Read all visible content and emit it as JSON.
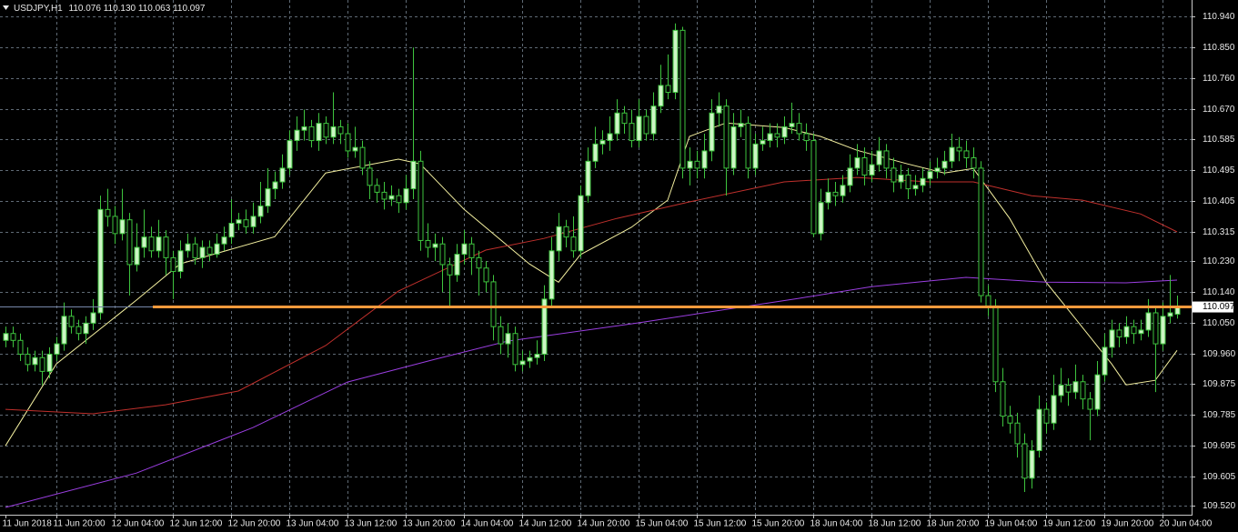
{
  "chart_data": {
    "type": "candlestick",
    "header": {
      "symbol": "USDJPY,H1",
      "values": [
        "110.076",
        "110.130",
        "110.063",
        "110.097"
      ]
    },
    "open": [
      110.0,
      110.02,
      110.0,
      109.96,
      109.93,
      109.95,
      109.91,
      109.96,
      109.99,
      110.07,
      110.04,
      110.02,
      110.05,
      110.08,
      110.38,
      110.36,
      110.31,
      110.35,
      110.22,
      110.27,
      110.3,
      110.26,
      110.3,
      110.24,
      110.2,
      110.26,
      110.28,
      110.24,
      110.27,
      110.25,
      110.28,
      110.3,
      110.34,
      110.35,
      110.33,
      110.36,
      110.39,
      110.44,
      110.46,
      110.5,
      110.58,
      110.61,
      110.62,
      110.58,
      110.63,
      110.59,
      110.62,
      110.6,
      110.55,
      110.56,
      110.5,
      110.45,
      110.43,
      110.41,
      110.42,
      110.4,
      110.44,
      110.52,
      110.29,
      110.27,
      110.28,
      110.22,
      110.19,
      110.25,
      110.28,
      110.24,
      110.21,
      110.17,
      110.04,
      109.99,
      110.02,
      109.93,
      109.94,
      109.95,
      109.96,
      110.12,
      110.26,
      110.33,
      110.3,
      110.26,
      110.42,
      110.52,
      110.57,
      110.58,
      110.6,
      110.66,
      110.63,
      110.58,
      110.65,
      110.6,
      110.68,
      110.74,
      110.72,
      110.9,
      110.5,
      110.52,
      110.5,
      110.55,
      110.66,
      110.68,
      110.5,
      110.62,
      110.63,
      110.5,
      110.57,
      110.58,
      110.6,
      110.59,
      110.62,
      110.63,
      110.6,
      110.58,
      110.31,
      110.4,
      110.43,
      110.42,
      110.45,
      110.5,
      110.53,
      110.48,
      110.51,
      110.55,
      110.5,
      110.46,
      110.48,
      110.44,
      110.45,
      110.47,
      110.49,
      110.5,
      110.52,
      110.56,
      110.55,
      110.53,
      110.5,
      110.13,
      110.1,
      109.88,
      109.78,
      109.76,
      109.7,
      109.6,
      109.68,
      109.8,
      109.76,
      109.84,
      109.87,
      109.85,
      109.88,
      109.83,
      109.8,
      109.9,
      109.98,
      110.03,
      110.01,
      110.04,
      110.02,
      110.03,
      110.08,
      109.99,
      110.07,
      110.076
    ],
    "high": [
      110.04,
      110.04,
      110.02,
      109.98,
      109.97,
      109.97,
      109.98,
      110.01,
      110.11,
      110.09,
      110.06,
      110.07,
      110.12,
      110.42,
      110.44,
      110.39,
      110.44,
      110.37,
      110.34,
      110.38,
      110.33,
      110.35,
      110.32,
      110.26,
      110.29,
      110.31,
      110.3,
      110.29,
      110.29,
      110.31,
      110.33,
      110.41,
      110.37,
      110.38,
      110.4,
      110.46,
      110.5,
      110.49,
      110.54,
      110.61,
      110.65,
      110.67,
      110.64,
      110.66,
      110.65,
      110.72,
      110.64,
      110.63,
      110.62,
      110.58,
      110.52,
      110.47,
      110.46,
      110.45,
      110.44,
      110.48,
      110.85,
      110.55,
      110.34,
      110.31,
      110.3,
      110.24,
      110.28,
      110.32,
      110.3,
      110.26,
      110.23,
      110.19,
      110.07,
      110.05,
      110.04,
      109.97,
      109.97,
      110.0,
      110.16,
      110.3,
      110.37,
      110.35,
      110.36,
      110.45,
      110.56,
      110.62,
      110.61,
      110.65,
      110.7,
      110.68,
      110.67,
      110.7,
      110.67,
      110.72,
      110.8,
      110.83,
      110.92,
      110.91,
      110.56,
      110.55,
      110.6,
      110.7,
      110.72,
      110.7,
      110.66,
      110.67,
      110.65,
      110.6,
      110.62,
      110.63,
      110.63,
      110.65,
      110.69,
      110.66,
      110.63,
      110.6,
      110.44,
      110.47,
      110.46,
      110.48,
      110.54,
      110.57,
      110.56,
      110.55,
      110.59,
      110.57,
      110.53,
      110.51,
      110.5,
      110.48,
      110.5,
      110.52,
      110.53,
      110.55,
      110.6,
      110.59,
      110.58,
      110.56,
      110.52,
      110.16,
      110.12,
      109.92,
      109.81,
      109.79,
      109.73,
      109.71,
      109.84,
      109.82,
      109.9,
      109.92,
      109.89,
      109.93,
      109.9,
      109.85,
      109.94,
      110.02,
      110.06,
      110.05,
      110.07,
      110.06,
      110.06,
      110.12,
      110.1,
      110.11,
      110.19,
      110.13
    ],
    "low": [
      109.98,
      109.98,
      109.94,
      109.91,
      109.91,
      109.87,
      109.89,
      109.94,
      109.97,
      110.02,
      110.0,
      109.99,
      110.03,
      110.06,
      110.33,
      110.28,
      110.29,
      110.13,
      110.2,
      110.24,
      110.24,
      110.24,
      110.19,
      110.12,
      110.18,
      110.24,
      110.22,
      110.21,
      110.23,
      110.24,
      110.26,
      110.28,
      110.32,
      110.31,
      110.31,
      110.34,
      110.37,
      110.41,
      110.44,
      110.48,
      110.55,
      110.58,
      110.56,
      110.55,
      110.57,
      110.57,
      110.57,
      110.53,
      110.53,
      110.48,
      110.41,
      110.4,
      110.38,
      110.39,
      110.37,
      110.38,
      110.41,
      110.26,
      110.24,
      110.23,
      110.14,
      110.1,
      110.17,
      110.22,
      110.19,
      110.13,
      110.14,
      110.0,
      109.96,
      109.95,
      109.91,
      109.91,
      109.92,
      109.93,
      109.94,
      110.1,
      110.23,
      110.27,
      110.24,
      110.24,
      110.4,
      110.5,
      110.54,
      110.55,
      110.58,
      110.6,
      110.56,
      110.56,
      110.58,
      110.58,
      110.66,
      110.7,
      110.7,
      110.47,
      110.45,
      110.47,
      110.47,
      110.52,
      110.62,
      110.42,
      110.48,
      110.59,
      110.47,
      110.48,
      110.55,
      110.56,
      110.56,
      110.57,
      110.6,
      110.58,
      110.55,
      110.3,
      110.29,
      110.38,
      110.39,
      110.4,
      110.43,
      110.48,
      110.45,
      110.46,
      110.49,
      110.47,
      110.43,
      110.44,
      110.41,
      110.42,
      110.43,
      110.45,
      110.47,
      110.48,
      110.5,
      110.52,
      110.5,
      110.47,
      110.11,
      110.07,
      109.85,
      109.75,
      109.73,
      109.66,
      109.56,
      109.57,
      109.66,
      109.73,
      109.74,
      109.82,
      109.81,
      109.83,
      109.8,
      109.71,
      109.78,
      109.88,
      109.95,
      109.98,
      109.99,
      109.99,
      110.0,
      110.01,
      109.85,
      109.97,
      110.05,
      110.063
    ],
    "close": [
      110.02,
      110.0,
      109.96,
      109.93,
      109.95,
      109.91,
      109.96,
      109.99,
      110.07,
      110.04,
      110.02,
      110.05,
      110.08,
      110.38,
      110.36,
      110.31,
      110.35,
      110.22,
      110.27,
      110.3,
      110.26,
      110.3,
      110.24,
      110.2,
      110.26,
      110.28,
      110.24,
      110.27,
      110.25,
      110.28,
      110.3,
      110.34,
      110.35,
      110.33,
      110.36,
      110.39,
      110.44,
      110.46,
      110.5,
      110.58,
      110.61,
      110.62,
      110.58,
      110.63,
      110.59,
      110.62,
      110.6,
      110.55,
      110.56,
      110.5,
      110.45,
      110.43,
      110.41,
      110.42,
      110.4,
      110.44,
      110.52,
      110.29,
      110.27,
      110.28,
      110.22,
      110.19,
      110.25,
      110.28,
      110.24,
      110.21,
      110.17,
      110.04,
      109.99,
      110.02,
      109.93,
      109.94,
      109.95,
      109.96,
      110.12,
      110.26,
      110.33,
      110.3,
      110.26,
      110.42,
      110.52,
      110.57,
      110.58,
      110.6,
      110.66,
      110.63,
      110.58,
      110.65,
      110.6,
      110.68,
      110.74,
      110.72,
      110.9,
      110.5,
      110.52,
      110.5,
      110.55,
      110.66,
      110.68,
      110.5,
      110.62,
      110.63,
      110.5,
      110.57,
      110.58,
      110.6,
      110.59,
      110.62,
      110.63,
      110.6,
      110.58,
      110.31,
      110.4,
      110.43,
      110.42,
      110.45,
      110.5,
      110.53,
      110.48,
      110.51,
      110.55,
      110.5,
      110.46,
      110.48,
      110.44,
      110.45,
      110.47,
      110.49,
      110.5,
      110.52,
      110.56,
      110.55,
      110.53,
      110.5,
      110.13,
      110.1,
      109.88,
      109.78,
      109.76,
      109.7,
      109.6,
      109.68,
      109.8,
      109.76,
      109.84,
      109.87,
      109.85,
      109.88,
      109.83,
      109.8,
      109.9,
      109.98,
      110.03,
      110.01,
      110.04,
      110.02,
      110.03,
      110.08,
      109.99,
      110.07,
      110.08,
      110.097
    ],
    "up_color": "#ccf5c4",
    "down_color": "#000000",
    "wick_color": "#3ec43e",
    "lines": [
      {
        "color": "#f4f0a0",
        "x": [
          0,
          7,
          18,
          24,
          37,
          44,
          54,
          57,
          63,
          72,
          76,
          79,
          86,
          91,
          94,
          99,
          107,
          112,
          117,
          124,
          129,
          133,
          138,
          143,
          147,
          152,
          154,
          158,
          161
        ],
        "values": [
          109.694,
          109.932,
          110.117,
          110.222,
          110.301,
          110.486,
          110.526,
          110.512,
          110.381,
          110.222,
          110.169,
          110.249,
          110.328,
          110.407,
          110.592,
          110.631,
          110.618,
          110.592,
          110.552,
          110.512,
          110.486,
          110.499,
          110.354,
          110.169,
          110.064,
          109.932,
          109.871,
          109.884,
          109.971
        ]
      },
      {
        "color": "#c0302c",
        "x": [
          0,
          12,
          22,
          32,
          44,
          54,
          66,
          74,
          84,
          94,
          107,
          117,
          127,
          133,
          141,
          148,
          156,
          161
        ],
        "values": [
          109.8,
          109.787,
          109.813,
          109.853,
          109.985,
          110.143,
          110.262,
          110.296,
          110.354,
          110.402,
          110.46,
          110.473,
          110.46,
          110.46,
          110.42,
          110.407,
          110.367,
          110.315
        ]
      },
      {
        "color": "#9a3ee0",
        "x": [
          0,
          18,
          34,
          47,
          59,
          69,
          87,
          99,
          109,
          119,
          132,
          143,
          154,
          161
        ],
        "values": [
          109.515,
          109.615,
          109.747,
          109.879,
          109.945,
          109.998,
          110.051,
          110.09,
          110.122,
          110.156,
          110.183,
          110.169,
          110.167,
          110.175
        ]
      }
    ],
    "price_line": {
      "value": 110.097,
      "label": "110.097",
      "color": "#ff9a3c"
    },
    "xlim": [
      -0.75,
      163
    ],
    "ylim": [
      109.494,
      110.988
    ],
    "xticks": [
      {
        "value": 0,
        "label": "11 Jun 2018"
      },
      {
        "value": 7,
        "label": "11 Jun 20:00"
      },
      {
        "value": 15,
        "label": "12 Jun 04:00"
      },
      {
        "value": 23,
        "label": "12 Jun 12:00"
      },
      {
        "value": 31,
        "label": "12 Jun 20:00"
      },
      {
        "value": 39,
        "label": "13 Jun 04:00"
      },
      {
        "value": 47,
        "label": "13 Jun 12:00"
      },
      {
        "value": 55,
        "label": "13 Jun 20:00"
      },
      {
        "value": 63,
        "label": "14 Jun 04:00"
      },
      {
        "value": 71,
        "label": "14 Jun 12:00"
      },
      {
        "value": 79,
        "label": "14 Jun 20:00"
      },
      {
        "value": 87,
        "label": "15 Jun 04:00"
      },
      {
        "value": 95,
        "label": "15 Jun 12:00"
      },
      {
        "value": 103,
        "label": "15 Jun 20:00"
      },
      {
        "value": 111,
        "label": "18 Jun 04:00"
      },
      {
        "value": 119,
        "label": "18 Jun 12:00"
      },
      {
        "value": 127,
        "label": "18 Jun 20:00"
      },
      {
        "value": 135,
        "label": "19 Jun 04:00"
      },
      {
        "value": 143,
        "label": "19 Jun 12:00"
      },
      {
        "value": 151,
        "label": "19 Jun 20:00"
      },
      {
        "value": 159,
        "label": "20 Jun 04:00"
      }
    ],
    "yticks": [
      {
        "value": 110.94,
        "label": "110.940"
      },
      {
        "value": 110.85,
        "label": "110.850"
      },
      {
        "value": 110.76,
        "label": "110.760"
      },
      {
        "value": 110.67,
        "label": "110.670"
      },
      {
        "value": 110.585,
        "label": "110.585"
      },
      {
        "value": 110.495,
        "label": "110.495"
      },
      {
        "value": 110.405,
        "label": "110.405"
      },
      {
        "value": 110.315,
        "label": "110.315"
      },
      {
        "value": 110.23,
        "label": "110.230"
      },
      {
        "value": 110.14,
        "label": "110.140"
      },
      {
        "value": 110.05,
        "label": "110.050"
      },
      {
        "value": 109.96,
        "label": "109.960"
      },
      {
        "value": 109.875,
        "label": "109.875"
      },
      {
        "value": 109.785,
        "label": "109.785"
      },
      {
        "value": 109.695,
        "label": "109.695"
      },
      {
        "value": 109.605,
        "label": "109.605"
      },
      {
        "value": 109.52,
        "label": "109.520"
      }
    ],
    "grid": true
  }
}
